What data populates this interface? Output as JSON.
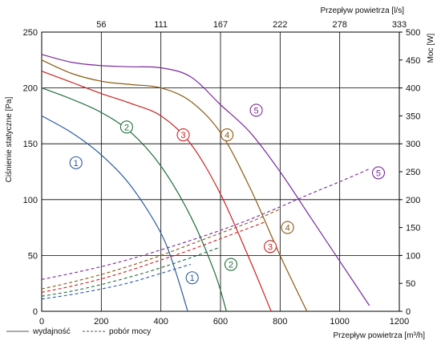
{
  "chart_data": {
    "type": "line",
    "x_axis": {
      "label": "Przepływ powietrza [m³/h]",
      "range": [
        0,
        1200
      ],
      "ticks": [
        0,
        200,
        400,
        600,
        800,
        1000,
        1200
      ]
    },
    "x2_axis": {
      "label": "Przepływ powietrza [l/s]",
      "tick_labels": [
        "56",
        "111",
        "167",
        "222",
        "278",
        "333"
      ],
      "tick_positions_m3h": [
        200,
        400,
        600,
        800,
        1000,
        1200
      ]
    },
    "y_axis": {
      "label": "Ciśnienie statyczne [Pa]",
      "range": [
        0,
        250
      ],
      "ticks": [
        0,
        50,
        100,
        150,
        200,
        250
      ]
    },
    "y2_axis": {
      "label": "Moc [W]",
      "range": [
        0,
        500
      ],
      "ticks": [
        0,
        50,
        100,
        150,
        200,
        250,
        300,
        350,
        400,
        450,
        500
      ]
    },
    "grid": true,
    "legend": {
      "placement": "bottom-left",
      "items": [
        {
          "label": "wydajność",
          "style": "solid"
        },
        {
          "label": "pobór mocy",
          "style": "dashed"
        }
      ]
    },
    "pressure_series": [
      {
        "marker": "1",
        "color": "#2a5aa0",
        "points": [
          [
            0,
            175
          ],
          [
            100,
            160
          ],
          [
            200,
            140
          ],
          [
            300,
            112
          ],
          [
            400,
            70
          ],
          [
            450,
            35
          ],
          [
            490,
            0
          ]
        ],
        "marker_pos": [
          115,
          133
        ]
      },
      {
        "marker": "2",
        "color": "#1f6e3a",
        "points": [
          [
            0,
            200
          ],
          [
            100,
            190
          ],
          [
            200,
            178
          ],
          [
            300,
            160
          ],
          [
            400,
            130
          ],
          [
            500,
            85
          ],
          [
            580,
            35
          ],
          [
            620,
            0
          ]
        ],
        "marker_pos": [
          285,
          165
        ]
      },
      {
        "marker": "3",
        "color": "#cc2222",
        "points": [
          [
            0,
            215
          ],
          [
            100,
            205
          ],
          [
            200,
            195
          ],
          [
            300,
            186
          ],
          [
            400,
            175
          ],
          [
            500,
            150
          ],
          [
            600,
            105
          ],
          [
            700,
            45
          ],
          [
            770,
            0
          ]
        ],
        "marker_pos": [
          475,
          158
        ]
      },
      {
        "marker": "4",
        "color": "#8a5a14",
        "points": [
          [
            0,
            225
          ],
          [
            100,
            213
          ],
          [
            200,
            206
          ],
          [
            300,
            203
          ],
          [
            400,
            200
          ],
          [
            500,
            188
          ],
          [
            600,
            160
          ],
          [
            700,
            110
          ],
          [
            800,
            50
          ],
          [
            890,
            0
          ]
        ],
        "marker_pos": [
          622,
          158
        ]
      },
      {
        "marker": "5",
        "color": "#7a2a9a",
        "points": [
          [
            0,
            230
          ],
          [
            100,
            223
          ],
          [
            200,
            220
          ],
          [
            300,
            219
          ],
          [
            400,
            218
          ],
          [
            500,
            210
          ],
          [
            600,
            185
          ],
          [
            700,
            160
          ],
          [
            800,
            125
          ],
          [
            900,
            85
          ],
          [
            1000,
            45
          ],
          [
            1100,
            5
          ]
        ],
        "marker_pos": [
          720,
          180
        ]
      }
    ],
    "power_series": [
      {
        "marker": "1",
        "color": "#2a5aa0",
        "points": [
          [
            0,
            22
          ],
          [
            100,
            30
          ],
          [
            200,
            40
          ],
          [
            300,
            52
          ],
          [
            400,
            68
          ],
          [
            500,
            84
          ]
        ],
        "marker_pos": [
          505,
          30
        ]
      },
      {
        "marker": "2",
        "color": "#1f6e3a",
        "points": [
          [
            0,
            27
          ],
          [
            100,
            36
          ],
          [
            200,
            48
          ],
          [
            300,
            62
          ],
          [
            400,
            78
          ],
          [
            500,
            96
          ],
          [
            600,
            115
          ]
        ],
        "marker_pos": [
          635,
          42
        ]
      },
      {
        "marker": "3",
        "color": "#cc2222",
        "points": [
          [
            0,
            34
          ],
          [
            100,
            45
          ],
          [
            200,
            58
          ],
          [
            300,
            74
          ],
          [
            400,
            92
          ],
          [
            500,
            110
          ],
          [
            600,
            130
          ],
          [
            700,
            150
          ],
          [
            750,
            160
          ]
        ],
        "marker_pos": [
          767,
          58
        ]
      },
      {
        "marker": "4",
        "color": "#8a5a14",
        "points": [
          [
            0,
            40
          ],
          [
            100,
            52
          ],
          [
            200,
            66
          ],
          [
            300,
            82
          ],
          [
            400,
            100
          ],
          [
            500,
            120
          ],
          [
            600,
            140
          ],
          [
            700,
            160
          ],
          [
            800,
            183
          ]
        ],
        "marker_pos": [
          825,
          75
        ]
      },
      {
        "marker": "5",
        "color": "#7a2a9a",
        "points": [
          [
            0,
            57
          ],
          [
            100,
            68
          ],
          [
            200,
            80
          ],
          [
            300,
            94
          ],
          [
            400,
            110
          ],
          [
            500,
            127
          ],
          [
            600,
            145
          ],
          [
            700,
            165
          ],
          [
            800,
            187
          ],
          [
            900,
            210
          ],
          [
            1000,
            232
          ],
          [
            1100,
            255
          ]
        ],
        "marker_pos": [
          1130,
          124
        ]
      }
    ]
  },
  "colors": {
    "axis": "#000000",
    "grid": "#000000",
    "legend_line": "#555555"
  }
}
